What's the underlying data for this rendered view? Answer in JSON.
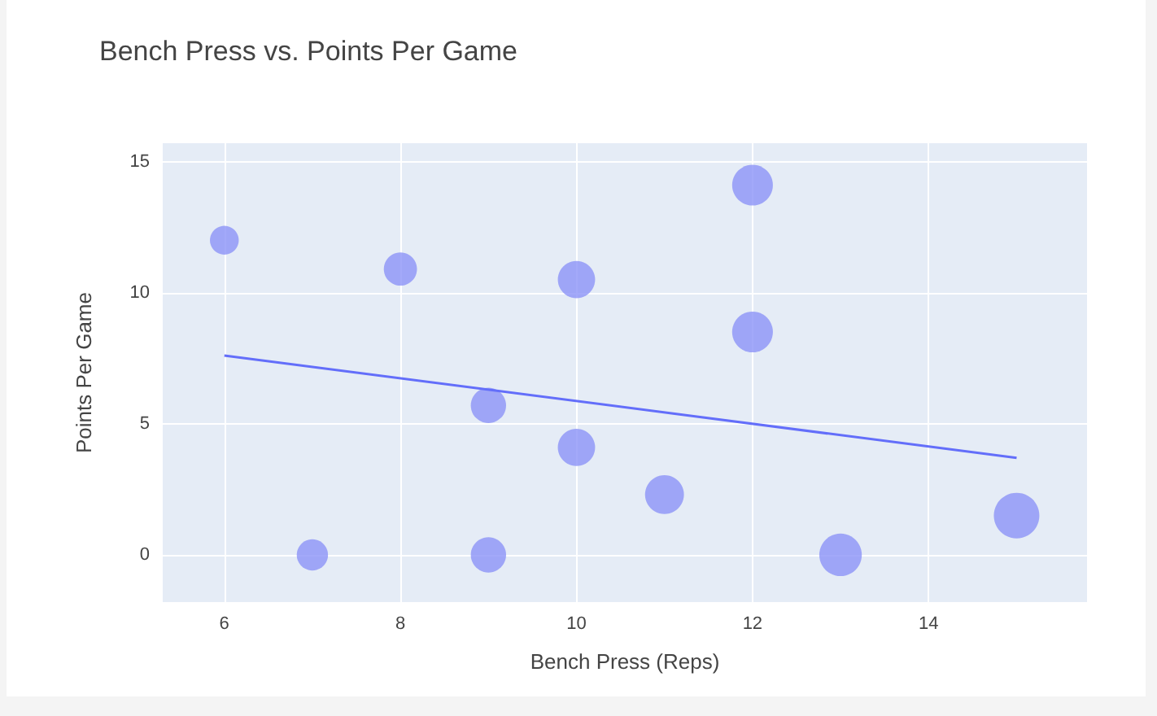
{
  "chart_data": {
    "type": "bubble",
    "title": "Bench Press vs. Points Per Game",
    "xlabel": "Bench Press (Reps)",
    "ylabel": "Points Per Game",
    "series": [
      {
        "color": "#8c93f7",
        "x": [
          6,
          7,
          8,
          9,
          9,
          10,
          10,
          11,
          12,
          12,
          13,
          15
        ],
        "values": [
          12,
          0,
          10.9,
          5.7,
          0,
          10.5,
          4.1,
          2.3,
          14.1,
          8.5,
          0,
          1.5
        ],
        "sizes": [
          0.4,
          0.47,
          0.53,
          0.6,
          0.6,
          0.67,
          0.67,
          0.73,
          0.8,
          0.8,
          0.87,
          1
        ]
      },
      {
        "type": "line",
        "color": "#636efa",
        "x": [
          6,
          15
        ],
        "values": [
          7.6,
          3.7
        ],
        "marker": "none"
      }
    ],
    "xlim": [
      5.3,
      15.8
    ],
    "xticks": [
      6,
      8,
      10,
      12,
      14
    ],
    "ylim": [
      -1.8,
      15.7
    ],
    "yticks": [
      0,
      5,
      10,
      15
    ],
    "grid": true
  }
}
